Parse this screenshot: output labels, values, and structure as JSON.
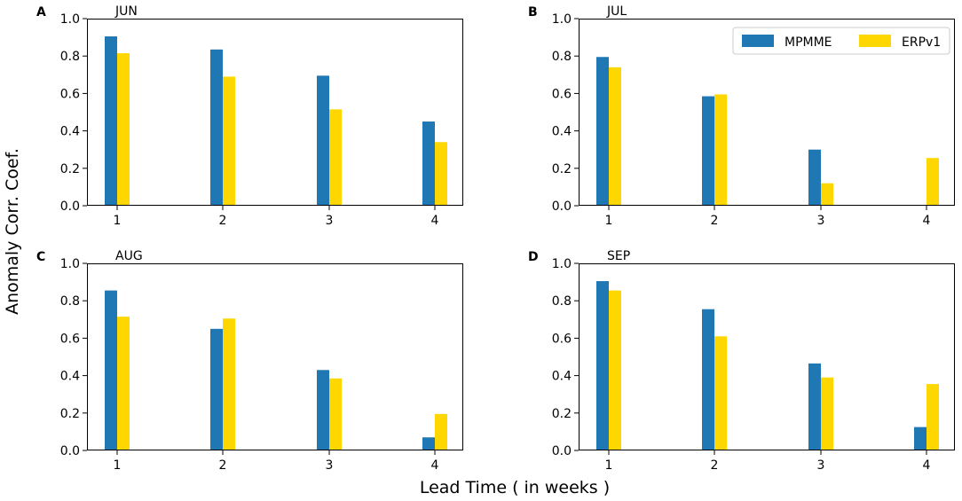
{
  "figure": {
    "ylabel": "Anomaly Corr. Coef.",
    "xlabel": "Lead Time ( in weeks )"
  },
  "colors": {
    "MPPME": "#1f77b4",
    "ERPv1": "#ffd700"
  },
  "chart_data": [
    {
      "letter": "A",
      "title": "JUN",
      "type": "bar",
      "categories": [
        "1",
        "2",
        "3",
        "4"
      ],
      "ylim": [
        0,
        1.0
      ],
      "yticks": [
        "0.0",
        "0.2",
        "0.4",
        "0.6",
        "0.8",
        "1.0"
      ],
      "series": [
        {
          "name": "MPMME",
          "values": [
            0.905,
            0.835,
            0.695,
            0.45
          ]
        },
        {
          "name": "ERPv1",
          "values": [
            0.815,
            0.69,
            0.515,
            0.34
          ]
        }
      ]
    },
    {
      "letter": "B",
      "title": "JUL",
      "type": "bar",
      "categories": [
        "1",
        "2",
        "3",
        "4"
      ],
      "ylim": [
        0,
        1.0
      ],
      "yticks": [
        "0.0",
        "0.2",
        "0.4",
        "0.6",
        "0.8",
        "1.0"
      ],
      "legend": {
        "position": "top-right",
        "entries": [
          "MPMME",
          "ERPv1"
        ]
      },
      "series": [
        {
          "name": "MPMME",
          "values": [
            0.795,
            0.585,
            0.3,
            0.003
          ]
        },
        {
          "name": "ERPv1",
          "values": [
            0.74,
            0.595,
            0.12,
            0.255
          ]
        }
      ]
    },
    {
      "letter": "C",
      "title": "AUG",
      "type": "bar",
      "categories": [
        "1",
        "2",
        "3",
        "4"
      ],
      "ylim": [
        0,
        1.0
      ],
      "yticks": [
        "0.0",
        "0.2",
        "0.4",
        "0.6",
        "0.8",
        "1.0"
      ],
      "series": [
        {
          "name": "MPMME",
          "values": [
            0.855,
            0.65,
            0.43,
            0.07
          ]
        },
        {
          "name": "ERPv1",
          "values": [
            0.715,
            0.705,
            0.385,
            0.195
          ]
        }
      ]
    },
    {
      "letter": "D",
      "title": "SEP",
      "type": "bar",
      "categories": [
        "1",
        "2",
        "3",
        "4"
      ],
      "ylim": [
        0,
        1.0
      ],
      "yticks": [
        "0.0",
        "0.2",
        "0.4",
        "0.6",
        "0.8",
        "1.0"
      ],
      "series": [
        {
          "name": "MPMME",
          "values": [
            0.905,
            0.755,
            0.465,
            0.125
          ]
        },
        {
          "name": "ERPv1",
          "values": [
            0.855,
            0.61,
            0.39,
            0.355
          ]
        }
      ]
    }
  ]
}
